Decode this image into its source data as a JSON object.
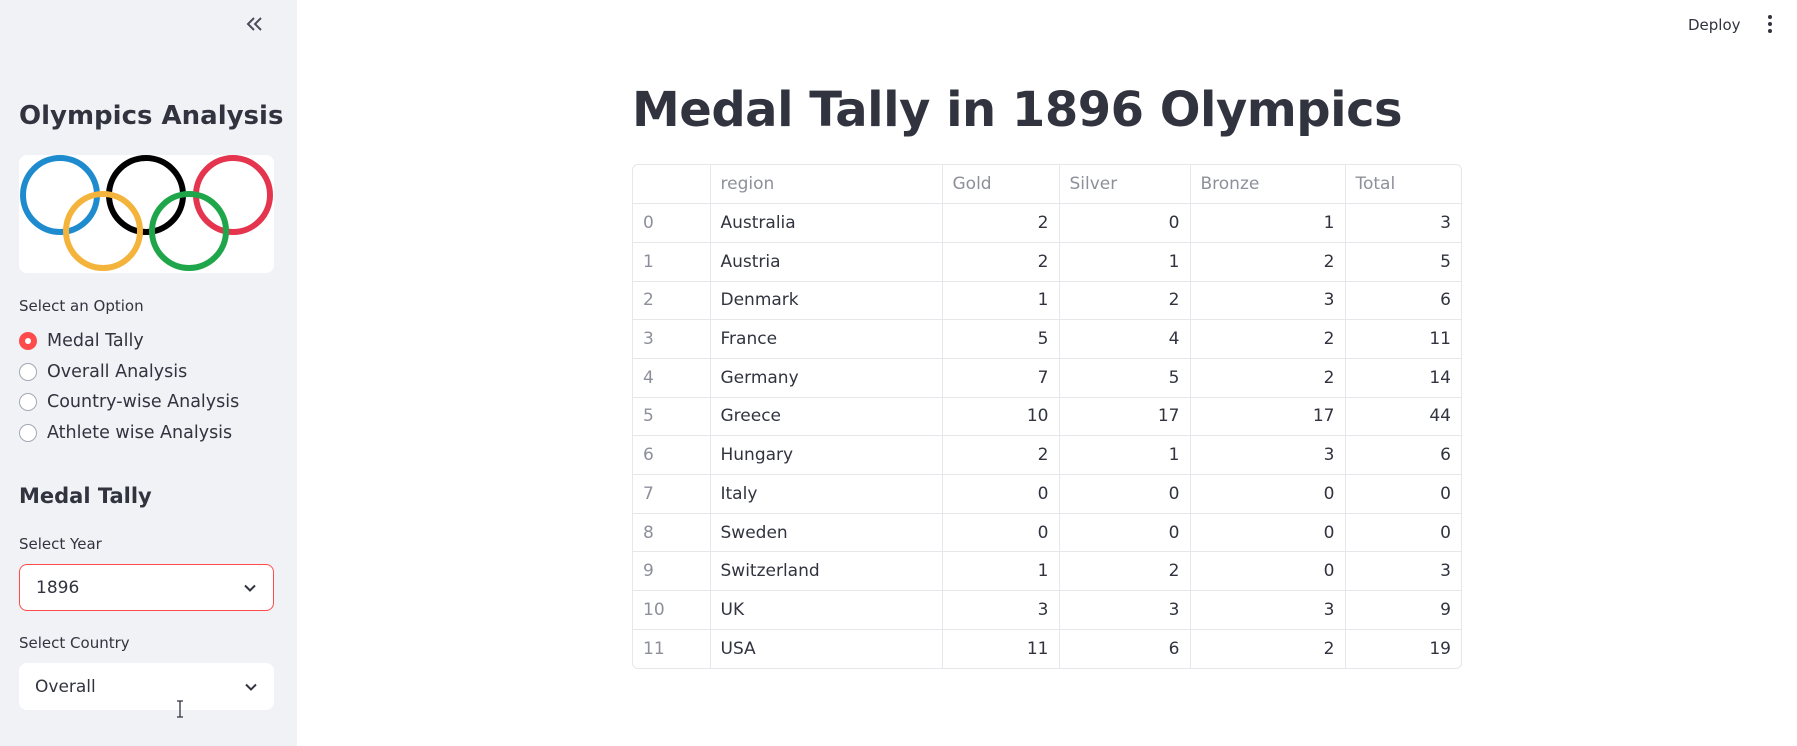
{
  "sidebar": {
    "title": "Olympics Analysis",
    "option_label": "Select an Option",
    "options": [
      "Medal Tally",
      "Overall Analysis",
      "Country-wise Analysis",
      "Athlete wise Analysis"
    ],
    "selected_option": "Medal Tally",
    "section_title": "Medal Tally",
    "year_label": "Select Year",
    "year_value": "1896",
    "country_label": "Select Country",
    "country_value": "Overall"
  },
  "header": {
    "deploy_label": "Deploy"
  },
  "main": {
    "title": "Medal Tally in 1896 Olympics",
    "columns": [
      "",
      "region",
      "Gold",
      "Silver",
      "Bronze",
      "Total"
    ],
    "rows": [
      {
        "idx": "0",
        "region": "Australia",
        "gold": "2",
        "silver": "0",
        "bronze": "1",
        "total": "3"
      },
      {
        "idx": "1",
        "region": "Austria",
        "gold": "2",
        "silver": "1",
        "bronze": "2",
        "total": "5"
      },
      {
        "idx": "2",
        "region": "Denmark",
        "gold": "1",
        "silver": "2",
        "bronze": "3",
        "total": "6"
      },
      {
        "idx": "3",
        "region": "France",
        "gold": "5",
        "silver": "4",
        "bronze": "2",
        "total": "11"
      },
      {
        "idx": "4",
        "region": "Germany",
        "gold": "7",
        "silver": "5",
        "bronze": "2",
        "total": "14"
      },
      {
        "idx": "5",
        "region": "Greece",
        "gold": "10",
        "silver": "17",
        "bronze": "17",
        "total": "44"
      },
      {
        "idx": "6",
        "region": "Hungary",
        "gold": "2",
        "silver": "1",
        "bronze": "3",
        "total": "6"
      },
      {
        "idx": "7",
        "region": "Italy",
        "gold": "0",
        "silver": "0",
        "bronze": "0",
        "total": "0"
      },
      {
        "idx": "8",
        "region": "Sweden",
        "gold": "0",
        "silver": "0",
        "bronze": "0",
        "total": "0"
      },
      {
        "idx": "9",
        "region": "Switzerland",
        "gold": "1",
        "silver": "2",
        "bronze": "0",
        "total": "3"
      },
      {
        "idx": "10",
        "region": "UK",
        "gold": "3",
        "silver": "3",
        "bronze": "3",
        "total": "9"
      },
      {
        "idx": "11",
        "region": "USA",
        "gold": "11",
        "silver": "6",
        "bronze": "2",
        "total": "19"
      }
    ]
  },
  "colors": {
    "accent": "#ff4b4b",
    "sidebar_bg": "#f0f2f6",
    "ring_blue": "#1f8bcf",
    "ring_black": "#000000",
    "ring_red": "#e5344e",
    "ring_yellow": "#f4b33a",
    "ring_green": "#1fa64a"
  },
  "icons": [
    "double-chevron-left-icon",
    "olympic-rings-logo",
    "chevron-down-icon",
    "vertical-dots-icon",
    "text-cursor-icon"
  ]
}
